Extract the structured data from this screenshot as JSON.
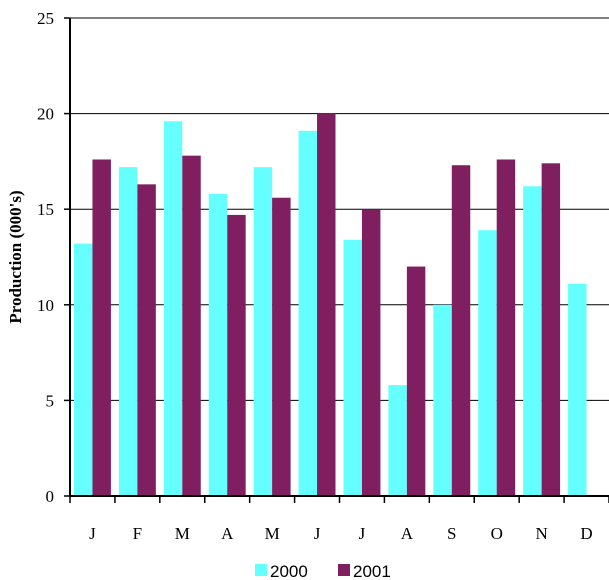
{
  "chart_data": {
    "type": "bar",
    "title": "",
    "xlabel": "",
    "ylabel": "Production (000's)",
    "categories": [
      "J",
      "F",
      "M",
      "A",
      "M",
      "J",
      "J",
      "A",
      "S",
      "O",
      "N",
      "D"
    ],
    "series": [
      {
        "name": "2000",
        "color": "#66ffff",
        "values": [
          13.2,
          17.2,
          19.6,
          15.8,
          17.2,
          19.1,
          13.4,
          5.8,
          10.0,
          13.9,
          16.2,
          11.1
        ]
      },
      {
        "name": "2001",
        "color": "#7f1f5f",
        "values": [
          17.6,
          16.3,
          17.8,
          14.7,
          15.6,
          20.0,
          15.0,
          12.0,
          17.3,
          17.6,
          17.4,
          null
        ]
      }
    ],
    "ylim": [
      0,
      25
    ],
    "yticks": [
      "0",
      "5",
      "10",
      "15",
      "20",
      "25"
    ],
    "grid": true,
    "legend": "bottom"
  }
}
